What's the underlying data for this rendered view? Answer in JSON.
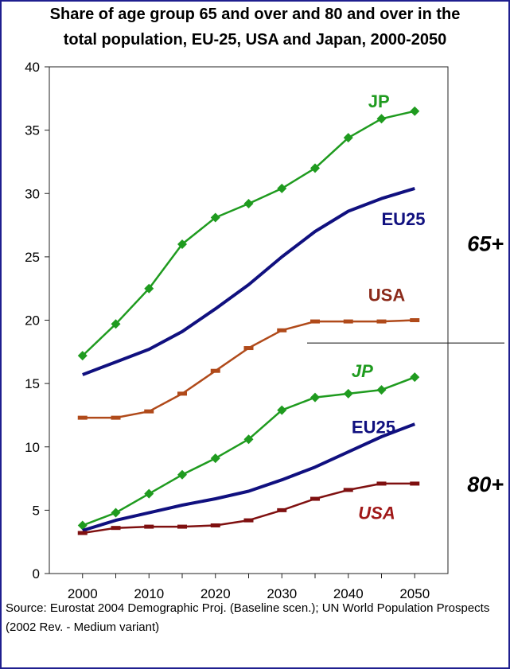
{
  "chart_data": {
    "type": "line",
    "title": "Share of age group 65 and over and 80 and over in the total population, EU-25, USA and Japan, 2000-2050",
    "title_lines": [
      "Share of age group 65 and over and 80 and over in the",
      "total population, EU-25, USA and Japan, 2000-2050"
    ],
    "xlabel": "",
    "ylabel": "",
    "x": [
      2000,
      2005,
      2010,
      2015,
      2020,
      2025,
      2030,
      2035,
      2040,
      2045,
      2050
    ],
    "xlim": [
      1995,
      2055
    ],
    "ylim": [
      0,
      40
    ],
    "x_ticks": [
      2000,
      2010,
      2020,
      2030,
      2040,
      2050
    ],
    "y_ticks": [
      0,
      5,
      10,
      15,
      20,
      25,
      30,
      35,
      40
    ],
    "grid": false,
    "legend": "none",
    "series": [
      {
        "name": "JP",
        "group": "65+",
        "color": "#1f9b1f",
        "marker": "diamond",
        "label_style": "normal",
        "values": [
          17.2,
          19.7,
          22.5,
          26.0,
          28.1,
          29.2,
          30.4,
          32.0,
          34.4,
          35.9,
          36.5
        ]
      },
      {
        "name": "EU25",
        "group": "65+",
        "color": "#10107f",
        "marker": "none",
        "label_style": "normal",
        "values": [
          15.7,
          16.7,
          17.7,
          19.1,
          20.9,
          22.8,
          25.0,
          27.0,
          28.6,
          29.6,
          30.4
        ]
      },
      {
        "name": "USA",
        "group": "65+",
        "color": "#b04a1a",
        "marker": "square",
        "label_style": "normal",
        "values": [
          12.3,
          12.3,
          12.8,
          14.2,
          16.0,
          17.8,
          19.2,
          19.9,
          19.9,
          19.9,
          20.0
        ]
      },
      {
        "name": "JP",
        "group": "80+",
        "color": "#1f9b1f",
        "marker": "diamond",
        "label_style": "italic",
        "values": [
          3.8,
          4.8,
          6.3,
          7.8,
          9.1,
          10.6,
          12.9,
          13.9,
          14.2,
          14.5,
          15.5
        ]
      },
      {
        "name": "EU25",
        "group": "80+",
        "color": "#10107f",
        "marker": "none",
        "label_style": "normal",
        "values": [
          3.4,
          4.2,
          4.8,
          5.4,
          5.9,
          6.5,
          7.4,
          8.4,
          9.6,
          10.8,
          11.8
        ]
      },
      {
        "name": "USA",
        "group": "80+",
        "color": "#7f1010",
        "marker": "square",
        "label_style": "italic",
        "values": [
          3.2,
          3.6,
          3.7,
          3.7,
          3.8,
          4.2,
          5.0,
          5.9,
          6.6,
          7.1,
          7.1
        ]
      }
    ],
    "annotations": [
      {
        "text": "JP",
        "color": "#1f9b1f",
        "italic": false,
        "x": 2043,
        "y": 37.3
      },
      {
        "text": "EU25",
        "color": "#10107f",
        "italic": false,
        "x": 2045,
        "y": 28.0
      },
      {
        "text": "USA",
        "color": "#8b2a1a",
        "italic": false,
        "x": 2043,
        "y": 22.0
      },
      {
        "text": "JP",
        "color": "#1f9b1f",
        "italic": true,
        "x": 2040.5,
        "y": 16.0
      },
      {
        "text": "EU25",
        "color": "#10107f",
        "italic": false,
        "x": 2040.5,
        "y": 11.6
      },
      {
        "text": "USA",
        "color": "#a01818",
        "italic": true,
        "x": 2041.5,
        "y": 4.8
      }
    ],
    "group_labels": [
      "65+",
      "80+"
    ],
    "divider_y": 18.2
  },
  "source": "Source: Eurostat 2004 Demographic Proj. (Baseline scen.); UN World Population Prospects (2002 Rev. - Medium variant)"
}
